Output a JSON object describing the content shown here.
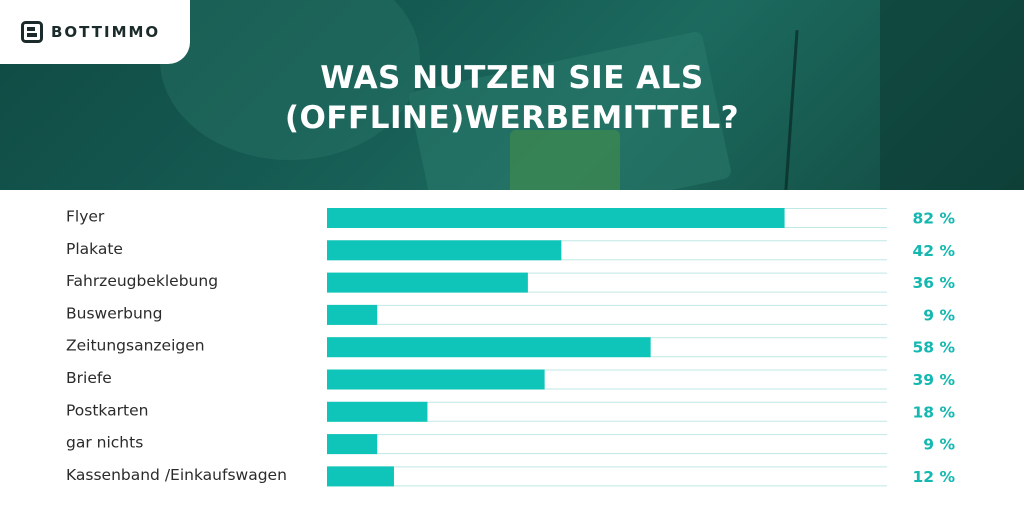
{
  "brand": {
    "name": "BOTTIMMO"
  },
  "title": {
    "line1": "WAS NUTZEN SIE ALS",
    "line2": "(OFFLINE)WERBEMITTEL?"
  },
  "colors": {
    "bar": "#0fc4b9",
    "track_line": "#bfe9e5",
    "value_text": "#14b8b0",
    "hero": "#155a52"
  },
  "chart_data": {
    "type": "bar",
    "orientation": "horizontal",
    "title": "WAS NUTZEN SIE ALS (OFFLINE)WERBEMITTEL?",
    "categories": [
      "Flyer",
      "Plakate",
      "Fahrzeugbeklebung",
      "Buswerbung",
      "Zeitungsanzeigen",
      "Briefe",
      "Postkarten",
      "gar nichts",
      "Kassenband /Einkaufswagen"
    ],
    "values": [
      82,
      42,
      36,
      9,
      58,
      39,
      18,
      9,
      12
    ],
    "value_labels": [
      "82 %",
      "42 %",
      "36 %",
      "9 %",
      "58 %",
      "39 %",
      "18 %",
      "9 %",
      "12 %"
    ],
    "xlim": [
      0,
      100
    ],
    "grid": false,
    "legend": "none"
  }
}
